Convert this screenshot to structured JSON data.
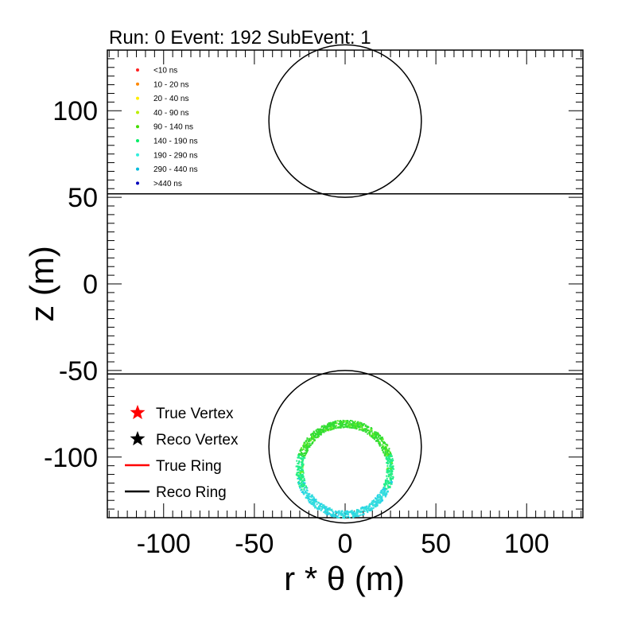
{
  "title": "Run: 0  Event: 192  SubEvent: 1",
  "chart_data": {
    "type": "scatter",
    "xlabel": "r * θ (m)",
    "ylabel": "z (m)",
    "xlim": [
      -131,
      131
    ],
    "ylim": [
      -135,
      135
    ],
    "x_ticks": [
      -100,
      -50,
      0,
      50,
      100
    ],
    "y_ticks": [
      -100,
      -50,
      0,
      50,
      100
    ],
    "x_tick_labels": [
      "-100",
      "-50",
      "0",
      "50",
      "100"
    ],
    "y_tick_labels": [
      "-100",
      "-50",
      "0",
      "50",
      "100"
    ],
    "boundaries": [
      {
        "z": 52
      },
      {
        "z": -52
      }
    ],
    "circles": [
      {
        "cx": 0,
        "cz": 94,
        "r": 42
      },
      {
        "cx": 0,
        "cz": -94,
        "r": 42
      }
    ],
    "hit_ring": {
      "cx": 0,
      "cz": -107,
      "r": 25,
      "width": 4,
      "colors_top": "#33dd33",
      "colors_side": "#22ee88",
      "colors_bottom": "#33dddd"
    },
    "time_legend": [
      {
        "label": "<10 ns",
        "color": "#ff2222"
      },
      {
        "label": "10 - 20 ns",
        "color": "#ff8800"
      },
      {
        "label": "20 - 40 ns",
        "color": "#ffee00"
      },
      {
        "label": "40 - 90 ns",
        "color": "#bbee00"
      },
      {
        "label": "90 - 140 ns",
        "color": "#44dd00"
      },
      {
        "label": "140 - 190 ns",
        "color": "#00ee66"
      },
      {
        "label": "190 - 290 ns",
        "color": "#33eedd"
      },
      {
        "label": "290 - 440 ns",
        "color": "#00bbdd"
      },
      {
        "label": ">440 ns",
        "color": "#0000bb"
      }
    ],
    "marker_legend": [
      {
        "label": "True Vertex",
        "kind": "star",
        "color": "#ff0000"
      },
      {
        "label": "Reco Vertex",
        "kind": "star",
        "color": "#000000"
      },
      {
        "label": "True Ring",
        "kind": "line",
        "color": "#ff0000"
      },
      {
        "label": "Reco Ring",
        "kind": "line",
        "color": "#000000"
      }
    ]
  }
}
